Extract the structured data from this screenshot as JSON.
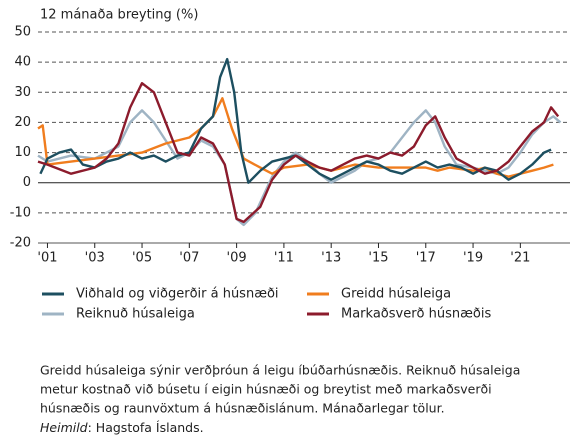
{
  "chart_data": {
    "type": "line",
    "y_label": "12 mánaða breyting (%)",
    "xlim": [
      2000.6,
      2023.1
    ],
    "xticks": [
      {
        "value": 2001,
        "label": "'01"
      },
      {
        "value": 2003,
        "label": "'03"
      },
      {
        "value": 2005,
        "label": "'05"
      },
      {
        "value": 2007,
        "label": "'07"
      },
      {
        "value": 2009,
        "label": "'09"
      },
      {
        "value": 2011,
        "label": "'11"
      },
      {
        "value": 2013,
        "label": "'13"
      },
      {
        "value": 2015,
        "label": "'15"
      },
      {
        "value": 2017,
        "label": "'17"
      },
      {
        "value": 2019,
        "label": "'19"
      },
      {
        "value": 2021,
        "label": "'21"
      }
    ],
    "ylim": [
      -20,
      50
    ],
    "yticks": [
      -20,
      -10,
      0,
      10,
      20,
      30,
      40,
      50
    ],
    "grid": true,
    "series": [
      {
        "name": "Viðhald og viðgerðir á húsnæði",
        "color": "#1d4f60",
        "x": [
          2000.7,
          2001,
          2001.5,
          2002,
          2002.5,
          2003,
          2003.5,
          2004,
          2004.5,
          2005,
          2005.5,
          2006,
          2006.5,
          2007,
          2007.5,
          2008,
          2008.3,
          2008.6,
          2008.9,
          2009.2,
          2009.5,
          2010,
          2010.5,
          2011,
          2011.5,
          2012,
          2012.5,
          2013,
          2013.5,
          2014,
          2014.5,
          2015,
          2015.5,
          2016,
          2016.5,
          2017,
          2017.5,
          2018,
          2018.5,
          2019,
          2019.5,
          2020,
          2020.5,
          2021,
          2021.5,
          2022,
          2022.3
        ],
        "values": [
          3,
          8,
          10,
          11,
          6,
          5,
          7,
          8,
          10,
          8,
          9,
          7,
          9,
          10,
          18,
          22,
          35,
          41,
          30,
          10,
          0,
          4,
          7,
          8,
          9,
          6,
          3,
          1,
          3,
          5,
          7,
          6,
          4,
          3,
          5,
          7,
          5,
          6,
          5,
          3,
          5,
          4,
          1,
          3,
          6,
          10,
          11
        ]
      },
      {
        "name": "Greidd húsaleiga",
        "color": "#f07d1e",
        "x": [
          2000.6,
          2000.8,
          2001,
          2002,
          2003,
          2004,
          2005,
          2006,
          2007,
          2007.5,
          2008,
          2008.4,
          2008.8,
          2009.3,
          2010,
          2010.5,
          2011,
          2012,
          2012.5,
          2013,
          2014,
          2015,
          2016,
          2017,
          2017.5,
          2018,
          2019,
          2019.5,
          2020,
          2020.5,
          2021,
          2021.5,
          2022,
          2022.4
        ],
        "values": [
          18,
          19,
          6,
          7,
          8,
          9,
          10,
          13,
          15,
          18,
          22,
          28,
          18,
          8,
          5,
          3,
          5,
          6,
          5,
          4,
          6,
          5,
          5,
          5,
          4,
          5,
          4,
          5,
          3,
          2,
          3,
          4,
          5,
          6
        ]
      },
      {
        "name": "Reiknuð húsaleiga",
        "color": "#9fb4c4",
        "x": [
          2000.6,
          2001,
          2002,
          2003,
          2003.5,
          2004,
          2004.5,
          2005,
          2005.5,
          2006,
          2006.5,
          2007,
          2007.5,
          2008,
          2008.5,
          2009,
          2009.3,
          2009.8,
          2010.5,
          2011,
          2011.5,
          2012,
          2012.5,
          2013,
          2013.5,
          2014,
          2014.5,
          2015,
          2015.5,
          2016,
          2016.5,
          2017,
          2017.4,
          2017.8,
          2018.3,
          2019,
          2019.5,
          2020,
          2020.5,
          2021,
          2021.5,
          2022,
          2022.4,
          2022.7
        ],
        "values": [
          9,
          7,
          9,
          8,
          10,
          12,
          20,
          24,
          20,
          14,
          8,
          10,
          14,
          12,
          6,
          -12,
          -14,
          -10,
          2,
          7,
          10,
          7,
          3,
          0,
          2,
          4,
          7,
          8,
          10,
          15,
          20,
          24,
          20,
          12,
          6,
          5,
          4,
          3,
          5,
          10,
          16,
          20,
          22,
          20
        ]
      },
      {
        "name": "Markaðsverð húsnæðis",
        "color": "#8c1b2c",
        "x": [
          2000.6,
          2001,
          2002,
          2003,
          2003.5,
          2004,
          2004.5,
          2005,
          2005.5,
          2006,
          2006.5,
          2007,
          2007.5,
          2008,
          2008.5,
          2009,
          2009.3,
          2010,
          2010.5,
          2011,
          2011.5,
          2012,
          2012.5,
          2013,
          2014,
          2014.5,
          2015,
          2015.5,
          2016,
          2016.5,
          2017,
          2017.4,
          2017.8,
          2018.3,
          2019,
          2019.5,
          2020,
          2020.5,
          2021,
          2021.5,
          2022,
          2022.3,
          2022.6
        ],
        "values": [
          7,
          6,
          3,
          5,
          8,
          13,
          25,
          33,
          30,
          20,
          10,
          9,
          15,
          13,
          6,
          -12,
          -13,
          -8,
          1,
          6,
          9,
          7,
          5,
          4,
          8,
          9,
          8,
          10,
          9,
          12,
          19,
          22,
          15,
          8,
          5,
          3,
          4,
          7,
          12,
          17,
          20,
          25,
          22
        ]
      }
    ]
  },
  "note_lines": [
    "Greidd húsaleiga sýnir verðþróun á leigu íbúðarhúsnæðis. Reiknuð húsaleiga",
    "metur kostnað við búsetu í eigin húsnæði og breytist með markaðsverði",
    "húsnæðis og raunvöxtum á húsnæðislánum. Mánaðarlegar tölur."
  ],
  "source": {
    "label": "Heimild",
    "text": ": Hagstofa Íslands."
  }
}
